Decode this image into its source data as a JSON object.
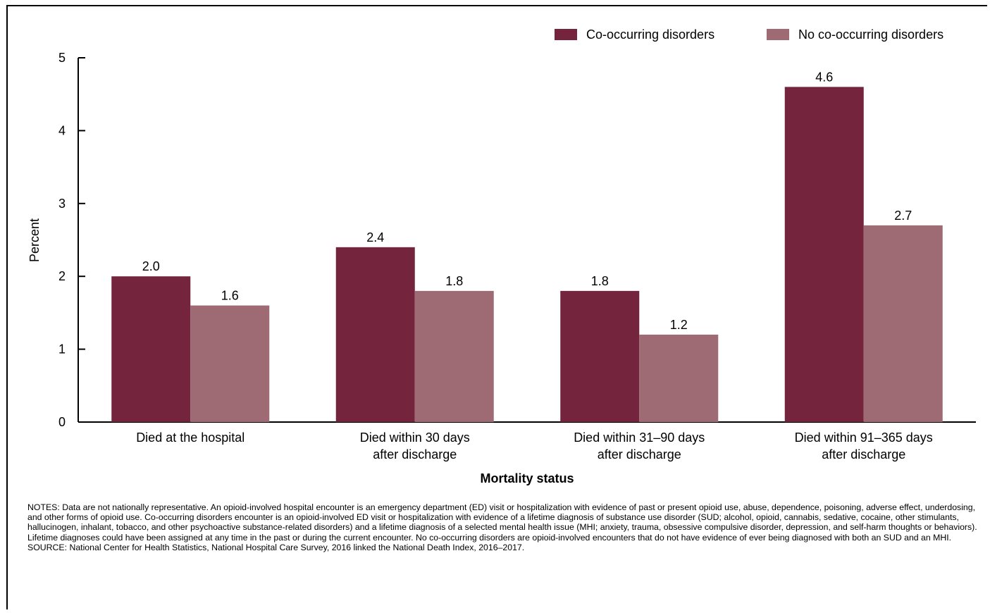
{
  "chart_data": {
    "type": "bar",
    "categories": [
      [
        "Died at the hospital"
      ],
      [
        "Died within 30 days",
        "after discharge"
      ],
      [
        "Died within 31–90 days",
        "after discharge"
      ],
      [
        "Died within 91–365 days",
        "after discharge"
      ]
    ],
    "series": [
      {
        "name": "Co-occurring disorders",
        "color": "#74243c",
        "values": [
          2.0,
          2.4,
          1.8,
          4.6
        ]
      },
      {
        "name": "No co-occurring disorders",
        "color": "#9e6a74",
        "values": [
          1.6,
          1.8,
          1.2,
          2.7
        ]
      }
    ],
    "data_labels": [
      [
        "2.0",
        "2.4",
        "1.8",
        "4.6"
      ],
      [
        "1.6",
        "1.8",
        "1.2",
        "2.7"
      ]
    ],
    "xlabel": "Mortality status",
    "ylabel": "Percent",
    "ylim": [
      0,
      5
    ],
    "yticks": [
      0,
      1,
      2,
      3,
      4,
      5
    ],
    "legend_position": "top-right",
    "grid": false
  },
  "notes": {
    "text": "NOTES: Data are not nationally representative. An opioid-involved hospital encounter is an emergency department (ED) visit or hospitalization with evidence of past or present opioid use, abuse, dependence, poisoning, adverse effect, underdosing, and other forms of opioid use. Co-occurring disorders encounter is an opioid-involved ED visit or hospitalization with evidence of a lifetime diagnosis of substance use disorder (SUD; alcohol, opioid, cannabis, sedative, cocaine, other stimulants, hallucinogen, inhalant, tobacco, and other psychoactive substance-related disorders) and a lifetime diagnosis of a selected mental health issue (MHI; anxiety, trauma, obsessive compulsive disorder, depression, and self-harm thoughts or behaviors). Lifetime diagnoses could have been assigned at any time in the past or during the current encounter. No co-occurring disorders are opioid-involved encounters that do not have evidence of ever being diagnosed with both an SUD and an MHI.",
    "source": "SOURCE: National Center for Health Statistics, National Hospital Care Survey, 2016 linked the National Death Index, 2016–2017."
  }
}
